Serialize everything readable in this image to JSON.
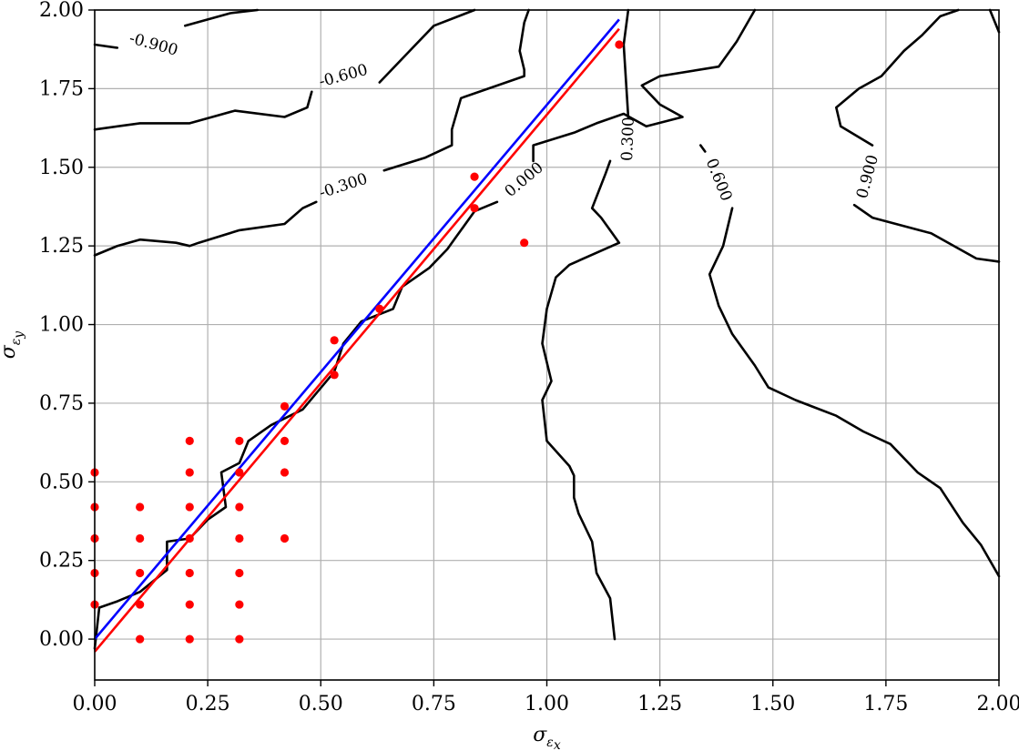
{
  "chart_data": {
    "type": "line",
    "title": "",
    "xlabel": "σ_εx",
    "ylabel": "σ_εy",
    "xlim": [
      0.0,
      2.0
    ],
    "ylim": [
      -0.13,
      2.0
    ],
    "grid": true,
    "x_ticks": [
      "0.00",
      "0.25",
      "0.50",
      "0.75",
      "1.00",
      "1.25",
      "1.50",
      "1.75",
      "2.00"
    ],
    "y_ticks": [
      "0.00",
      "0.25",
      "0.50",
      "0.75",
      "1.00",
      "1.25",
      "1.50",
      "1.75",
      "2.00"
    ],
    "contours": [
      {
        "level_label": "-0.900",
        "color": "#000000",
        "segments": [
          [
            [
              0.0,
              1.89
            ],
            [
              0.05,
              1.88
            ]
          ],
          [
            [
              0.2,
              1.95
            ],
            [
              0.3,
              1.99
            ],
            [
              0.36,
              2.0
            ]
          ]
        ],
        "label_at": [
          0.13,
          1.89
        ],
        "label_angle": 15
      },
      {
        "level_label": "-0.600",
        "color": "#000000",
        "segments": [
          [
            [
              0.0,
              1.62
            ],
            [
              0.1,
              1.64
            ],
            [
              0.21,
              1.64
            ],
            [
              0.31,
              1.68
            ],
            [
              0.42,
              1.66
            ],
            [
              0.47,
              1.69
            ],
            [
              0.48,
              1.74
            ]
          ],
          [
            [
              0.63,
              1.77
            ],
            [
              0.71,
              1.89
            ],
            [
              0.75,
              1.95
            ],
            [
              0.84,
              2.0
            ]
          ]
        ],
        "label_at": [
          0.55,
          1.79
        ],
        "label_angle": -15
      },
      {
        "level_label": "-0.300",
        "color": "#000000",
        "segments": [
          [
            [
              0.0,
              1.22
            ],
            [
              0.05,
              1.25
            ],
            [
              0.1,
              1.27
            ],
            [
              0.18,
              1.26
            ],
            [
              0.21,
              1.25
            ],
            [
              0.23,
              1.26
            ],
            [
              0.32,
              1.3
            ],
            [
              0.42,
              1.32
            ],
            [
              0.46,
              1.37
            ],
            [
              0.49,
              1.39
            ]
          ],
          [
            [
              0.64,
              1.49
            ],
            [
              0.73,
              1.53
            ],
            [
              0.79,
              1.57
            ],
            [
              0.79,
              1.62
            ],
            [
              0.81,
              1.72
            ],
            [
              0.95,
              1.79
            ],
            [
              0.95,
              1.81
            ],
            [
              0.94,
              1.87
            ],
            [
              0.95,
              1.96
            ],
            [
              0.96,
              2.0
            ]
          ]
        ],
        "label_at": [
          0.55,
          1.44
        ],
        "label_angle": -18
      },
      {
        "level_label": "0.000",
        "color": "#000000",
        "segments": [
          [
            [
              0.0,
              -0.03
            ],
            [
              0.01,
              0.1
            ],
            [
              0.05,
              0.12
            ],
            [
              0.1,
              0.15
            ],
            [
              0.16,
              0.22
            ],
            [
              0.16,
              0.31
            ],
            [
              0.21,
              0.32
            ],
            [
              0.25,
              0.38
            ],
            [
              0.29,
              0.42
            ],
            [
              0.28,
              0.53
            ],
            [
              0.32,
              0.56
            ],
            [
              0.34,
              0.63
            ],
            [
              0.39,
              0.68
            ],
            [
              0.46,
              0.73
            ],
            [
              0.53,
              0.85
            ],
            [
              0.55,
              0.94
            ],
            [
              0.59,
              1.01
            ],
            [
              0.66,
              1.05
            ],
            [
              0.68,
              1.12
            ],
            [
              0.74,
              1.18
            ],
            [
              0.78,
              1.24
            ],
            [
              0.8,
              1.28
            ],
            [
              0.84,
              1.36
            ],
            [
              0.89,
              1.39
            ]
          ],
          [
            [
              0.97,
              1.52
            ],
            [
              0.97,
              1.57
            ],
            [
              1.06,
              1.61
            ],
            [
              1.11,
              1.64
            ],
            [
              1.17,
              1.67
            ],
            [
              1.22,
              1.63
            ],
            [
              1.3,
              1.66
            ],
            [
              1.25,
              1.7
            ],
            [
              1.21,
              1.76
            ],
            [
              1.25,
              1.79
            ],
            [
              1.38,
              1.82
            ],
            [
              1.42,
              1.9
            ],
            [
              1.46,
              2.0
            ]
          ]
        ],
        "label_at": [
          0.95,
          1.46
        ],
        "label_angle": -40
      },
      {
        "level_label": "0.300",
        "color": "#000000",
        "segments": [
          [
            [
              1.15,
              0.0
            ],
            [
              1.14,
              0.13
            ],
            [
              1.11,
              0.21
            ],
            [
              1.1,
              0.31
            ],
            [
              1.07,
              0.4
            ],
            [
              1.06,
              0.45
            ],
            [
              1.06,
              0.52
            ],
            [
              1.05,
              0.55
            ],
            [
              1.0,
              0.63
            ],
            [
              0.99,
              0.76
            ],
            [
              1.01,
              0.82
            ],
            [
              0.99,
              0.94
            ],
            [
              1.0,
              1.05
            ],
            [
              1.02,
              1.15
            ],
            [
              1.05,
              1.19
            ],
            [
              1.16,
              1.26
            ],
            [
              1.12,
              1.34
            ],
            [
              1.1,
              1.37
            ],
            [
              1.13,
              1.48
            ],
            [
              1.14,
              1.52
            ]
          ],
          [
            [
              1.18,
              1.66
            ],
            [
              1.17,
              1.89
            ],
            [
              1.18,
              2.0
            ]
          ]
        ],
        "label_at": [
          1.18,
          1.59
        ],
        "label_angle": -88
      },
      {
        "level_label": "0.600",
        "color": "#000000",
        "segments": [
          [
            [
              1.34,
              1.57
            ],
            [
              1.35,
              1.55
            ]
          ],
          [
            [
              1.41,
              1.37
            ],
            [
              1.39,
              1.25
            ],
            [
              1.36,
              1.16
            ],
            [
              1.38,
              1.06
            ],
            [
              1.41,
              0.97
            ],
            [
              1.46,
              0.87
            ],
            [
              1.49,
              0.8
            ],
            [
              1.55,
              0.76
            ],
            [
              1.64,
              0.71
            ],
            [
              1.7,
              0.66
            ],
            [
              1.76,
              0.62
            ],
            [
              1.82,
              0.53
            ],
            [
              1.87,
              0.48
            ],
            [
              1.92,
              0.37
            ],
            [
              1.96,
              0.3
            ],
            [
              2.0,
              0.2
            ]
          ]
        ],
        "label_at": [
          1.38,
          1.46
        ],
        "label_angle": 68
      },
      {
        "level_label": "0.900",
        "color": "#000000",
        "segments": [
          [
            [
              1.72,
              1.57
            ],
            [
              1.65,
              1.63
            ],
            [
              1.64,
              1.69
            ],
            [
              1.69,
              1.75
            ],
            [
              1.74,
              1.79
            ],
            [
              1.79,
              1.87
            ],
            [
              1.83,
              1.92
            ],
            [
              1.87,
              1.98
            ],
            [
              1.91,
              2.0
            ]
          ],
          [
            [
              1.68,
              1.38
            ],
            [
              1.72,
              1.34
            ],
            [
              1.85,
              1.29
            ],
            [
              1.95,
              1.21
            ],
            [
              2.0,
              1.2
            ]
          ]
        ],
        "label_at": [
          1.71,
          1.47
        ],
        "label_angle": -75
      },
      {
        "level_label": "",
        "color": "#000000",
        "segments": [
          [
            [
              1.98,
              2.0
            ],
            [
              2.0,
              1.93
            ]
          ]
        ]
      }
    ],
    "lines": [
      {
        "color": "#0000ff",
        "points": [
          [
            0.0,
            0.0
          ],
          [
            1.16,
            1.97
          ]
        ]
      },
      {
        "color": "#ff0000",
        "points": [
          [
            0.0,
            -0.04
          ],
          [
            1.16,
            1.94
          ]
        ]
      }
    ],
    "scatter": {
      "color": "#ff0000",
      "points": [
        [
          0.0,
          0.11
        ],
        [
          0.0,
          0.21
        ],
        [
          0.0,
          0.32
        ],
        [
          0.0,
          0.42
        ],
        [
          0.0,
          0.53
        ],
        [
          0.1,
          0.0
        ],
        [
          0.1,
          0.11
        ],
        [
          0.1,
          0.21
        ],
        [
          0.1,
          0.32
        ],
        [
          0.1,
          0.42
        ],
        [
          0.21,
          0.0
        ],
        [
          0.21,
          0.11
        ],
        [
          0.21,
          0.21
        ],
        [
          0.21,
          0.32
        ],
        [
          0.21,
          0.42
        ],
        [
          0.21,
          0.53
        ],
        [
          0.21,
          0.63
        ],
        [
          0.32,
          0.0
        ],
        [
          0.32,
          0.11
        ],
        [
          0.32,
          0.21
        ],
        [
          0.32,
          0.32
        ],
        [
          0.32,
          0.42
        ],
        [
          0.32,
          0.53
        ],
        [
          0.32,
          0.63
        ],
        [
          0.42,
          0.32
        ],
        [
          0.42,
          0.53
        ],
        [
          0.42,
          0.63
        ],
        [
          0.42,
          0.74
        ],
        [
          0.53,
          0.84
        ],
        [
          0.53,
          0.95
        ],
        [
          0.63,
          1.05
        ],
        [
          0.84,
          1.37
        ],
        [
          0.84,
          1.47
        ],
        [
          0.95,
          1.26
        ],
        [
          1.16,
          1.89
        ]
      ]
    }
  }
}
